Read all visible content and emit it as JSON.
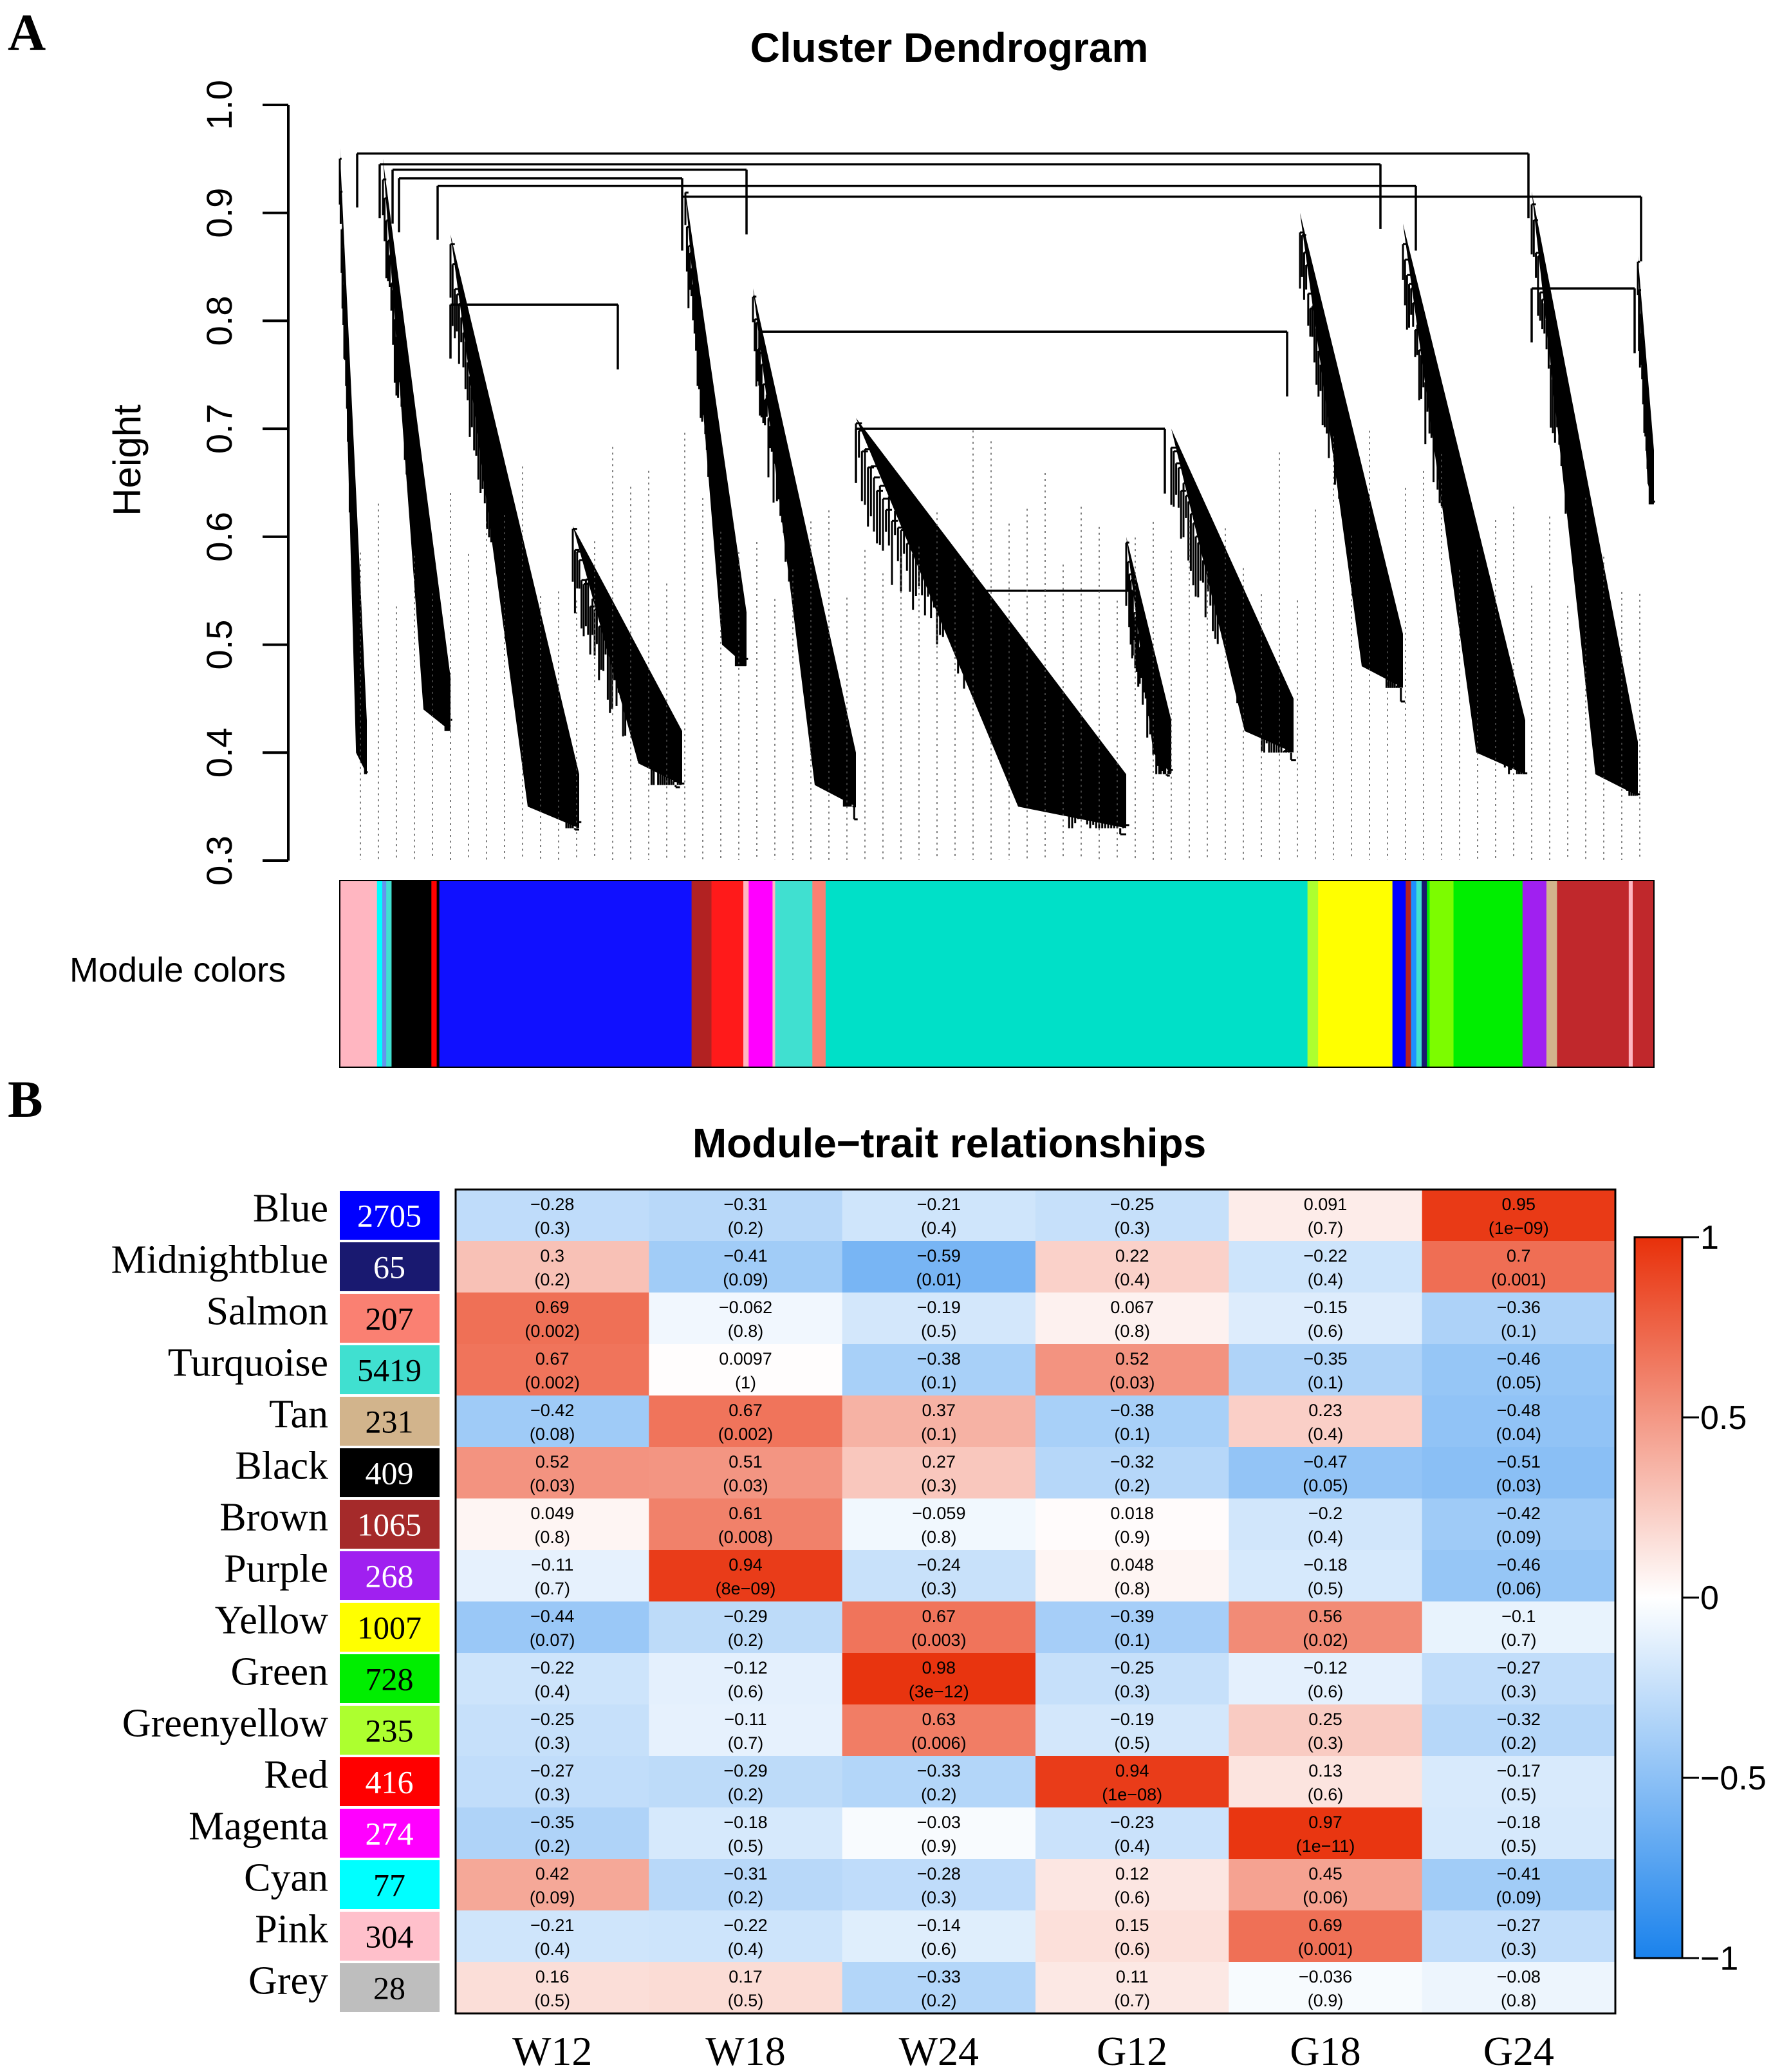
{
  "panel_a": {
    "letter": "A",
    "title": "Cluster Dendrogram",
    "ylabel": "Height",
    "yticks": [
      "0.3",
      "0.4",
      "0.5",
      "0.6",
      "0.7",
      "0.8",
      "0.9",
      "1.0"
    ],
    "module_colors_label": "Module colors",
    "module_color_bands": [
      {
        "color": "#ffb6c1",
        "fraction": 0.028
      },
      {
        "color": "#00ffff",
        "fraction": 0.004
      },
      {
        "color": "#6495ed",
        "fraction": 0.003
      },
      {
        "color": "#40e0d0",
        "fraction": 0.004
      },
      {
        "color": "#000000",
        "fraction": 0.03
      },
      {
        "color": "#ff0000",
        "fraction": 0.004
      },
      {
        "color": "#000000",
        "fraction": 0.002
      },
      {
        "color": "#1010ff",
        "fraction": 0.19
      },
      {
        "color": "#b22222",
        "fraction": 0.015
      },
      {
        "color": "#ff1a1a",
        "fraction": 0.024
      },
      {
        "color": "#ffb6c1",
        "fraction": 0.004
      },
      {
        "color": "#ff00ff",
        "fraction": 0.018
      },
      {
        "color": "#ffb6c1",
        "fraction": 0.002
      },
      {
        "color": "#40e0d0",
        "fraction": 0.028
      },
      {
        "color": "#fa8072",
        "fraction": 0.01
      },
      {
        "color": "#00e0c8",
        "fraction": 0.363
      },
      {
        "color": "#adff2f",
        "fraction": 0.008
      },
      {
        "color": "#ffff00",
        "fraction": 0.056
      },
      {
        "color": "#0000ff",
        "fraction": 0.01
      },
      {
        "color": "#b22222",
        "fraction": 0.004
      },
      {
        "color": "#1e90ff",
        "fraction": 0.004
      },
      {
        "color": "#40e0d0",
        "fraction": 0.004
      },
      {
        "color": "#191970",
        "fraction": 0.004
      },
      {
        "color": "#00ee00",
        "fraction": 0.002
      },
      {
        "color": "#7cfc00",
        "fraction": 0.018
      },
      {
        "color": "#00ee00",
        "fraction": 0.052
      },
      {
        "color": "#a020f0",
        "fraction": 0.018
      },
      {
        "color": "#d2b48c",
        "fraction": 0.008
      },
      {
        "color": "#c0282c",
        "fraction": 0.054
      },
      {
        "color": "#ffb6c1",
        "fraction": 0.003
      },
      {
        "color": "#c0282c",
        "fraction": 0.016
      }
    ]
  },
  "panel_b": {
    "letter": "B",
    "title": "Module−trait relationships",
    "colorbar_ticks": [
      "1",
      "0.5",
      "0",
      "−0.5",
      "−1"
    ]
  },
  "chart_data": [
    {
      "type": "dendrogram",
      "title": "Cluster Dendrogram",
      "ylabel": "Height",
      "ylim": [
        0.3,
        1.0
      ],
      "xlabel": "",
      "annotations": [
        "Module colors"
      ]
    },
    {
      "type": "heatmap",
      "title": "Module−trait relationships",
      "columns": [
        "W12",
        "W18",
        "W24",
        "G12",
        "G18",
        "G24"
      ],
      "colorbar": {
        "min": -1,
        "max": 1,
        "ticks": [
          "1",
          "0.5",
          "0",
          "−0.5",
          "−1"
        ]
      },
      "rows": [
        {
          "module": "Blue",
          "size": "2705",
          "swatch": "#0000ff",
          "cor": [
            "−0.28",
            "−0.31",
            "−0.21",
            "−0.25",
            "0.091",
            "0.95"
          ],
          "p": [
            "(0.3)",
            "(0.2)",
            "(0.4)",
            "(0.3)",
            "(0.7)",
            "(1e−09)"
          ]
        },
        {
          "module": "Midnightblue",
          "size": "65",
          "swatch": "#191970",
          "cor": [
            "0.3",
            "−0.41",
            "−0.59",
            "0.22",
            "−0.22",
            "0.7"
          ],
          "p": [
            "(0.2)",
            "(0.09)",
            "(0.01)",
            "(0.4)",
            "(0.4)",
            "(0.001)"
          ]
        },
        {
          "module": "Salmon",
          "size": "207",
          "swatch": "#fa8072",
          "cor": [
            "0.69",
            "−0.062",
            "−0.19",
            "0.067",
            "−0.15",
            "−0.36"
          ],
          "p": [
            "(0.002)",
            "(0.8)",
            "(0.5)",
            "(0.8)",
            "(0.6)",
            "(0.1)"
          ]
        },
        {
          "module": "Turquoise",
          "size": "5419",
          "swatch": "#40e0d0",
          "cor": [
            "0.67",
            "0.0097",
            "−0.38",
            "0.52",
            "−0.35",
            "−0.46"
          ],
          "p": [
            "(0.002)",
            "(1)",
            "(0.1)",
            "(0.03)",
            "(0.1)",
            "(0.05)"
          ]
        },
        {
          "module": "Tan",
          "size": "231",
          "swatch": "#d2b48c",
          "cor": [
            "−0.42",
            "0.67",
            "0.37",
            "−0.38",
            "0.23",
            "−0.48"
          ],
          "p": [
            "(0.08)",
            "(0.002)",
            "(0.1)",
            "(0.1)",
            "(0.4)",
            "(0.04)"
          ]
        },
        {
          "module": "Black",
          "size": "409",
          "swatch": "#000000",
          "cor": [
            "0.52",
            "0.51",
            "0.27",
            "−0.32",
            "−0.47",
            "−0.51"
          ],
          "p": [
            "(0.03)",
            "(0.03)",
            "(0.3)",
            "(0.2)",
            "(0.05)",
            "(0.03)"
          ]
        },
        {
          "module": "Brown",
          "size": "1065",
          "swatch": "#a52a2a",
          "cor": [
            "0.049",
            "0.61",
            "−0.059",
            "0.018",
            "−0.2",
            "−0.42"
          ],
          "p": [
            "(0.8)",
            "(0.008)",
            "(0.8)",
            "(0.9)",
            "(0.4)",
            "(0.09)"
          ]
        },
        {
          "module": "Purple",
          "size": "268",
          "swatch": "#a020f0",
          "cor": [
            "−0.11",
            "0.94",
            "−0.24",
            "0.048",
            "−0.18",
            "−0.46"
          ],
          "p": [
            "(0.7)",
            "(8e−09)",
            "(0.3)",
            "(0.8)",
            "(0.5)",
            "(0.06)"
          ]
        },
        {
          "module": "Yellow",
          "size": "1007",
          "swatch": "#ffff00",
          "cor": [
            "−0.44",
            "−0.29",
            "0.67",
            "−0.39",
            "0.56",
            "−0.1"
          ],
          "p": [
            "(0.07)",
            "(0.2)",
            "(0.003)",
            "(0.1)",
            "(0.02)",
            "(0.7)"
          ]
        },
        {
          "module": "Green",
          "size": "728",
          "swatch": "#00ee00",
          "cor": [
            "−0.22",
            "−0.12",
            "0.98",
            "−0.25",
            "−0.12",
            "−0.27"
          ],
          "p": [
            "(0.4)",
            "(0.6)",
            "(3e−12)",
            "(0.3)",
            "(0.6)",
            "(0.3)"
          ]
        },
        {
          "module": "Greenyellow",
          "size": "235",
          "swatch": "#adff2f",
          "cor": [
            "−0.25",
            "−0.11",
            "0.63",
            "−0.19",
            "0.25",
            "−0.32"
          ],
          "p": [
            "(0.3)",
            "(0.7)",
            "(0.006)",
            "(0.5)",
            "(0.3)",
            "(0.2)"
          ]
        },
        {
          "module": "Red",
          "size": "416",
          "swatch": "#ff0000",
          "cor": [
            "−0.27",
            "−0.29",
            "−0.33",
            "0.94",
            "0.13",
            "−0.17"
          ],
          "p": [
            "(0.3)",
            "(0.2)",
            "(0.2)",
            "(1e−08)",
            "(0.6)",
            "(0.5)"
          ]
        },
        {
          "module": "Magenta",
          "size": "274",
          "swatch": "#ff00ff",
          "cor": [
            "−0.35",
            "−0.18",
            "−0.03",
            "−0.23",
            "0.97",
            "−0.18"
          ],
          "p": [
            "(0.2)",
            "(0.5)",
            "(0.9)",
            "(0.4)",
            "(1e−11)",
            "(0.5)"
          ]
        },
        {
          "module": "Cyan",
          "size": "77",
          "swatch": "#00ffff",
          "cor": [
            "0.42",
            "−0.31",
            "−0.28",
            "0.12",
            "0.45",
            "−0.41"
          ],
          "p": [
            "(0.09)",
            "(0.2)",
            "(0.3)",
            "(0.6)",
            "(0.06)",
            "(0.09)"
          ]
        },
        {
          "module": "Pink",
          "size": "304",
          "swatch": "#ffc0cb",
          "cor": [
            "−0.21",
            "−0.22",
            "−0.14",
            "0.15",
            "0.69",
            "−0.27"
          ],
          "p": [
            "(0.4)",
            "(0.4)",
            "(0.6)",
            "(0.6)",
            "(0.001)",
            "(0.3)"
          ]
        },
        {
          "module": "Grey",
          "size": "28",
          "swatch": "#bebebe",
          "cor": [
            "0.16",
            "0.17",
            "−0.33",
            "0.11",
            "−0.036",
            "−0.08"
          ],
          "p": [
            "(0.5)",
            "(0.5)",
            "(0.2)",
            "(0.7)",
            "(0.9)",
            "(0.8)"
          ]
        }
      ]
    }
  ]
}
